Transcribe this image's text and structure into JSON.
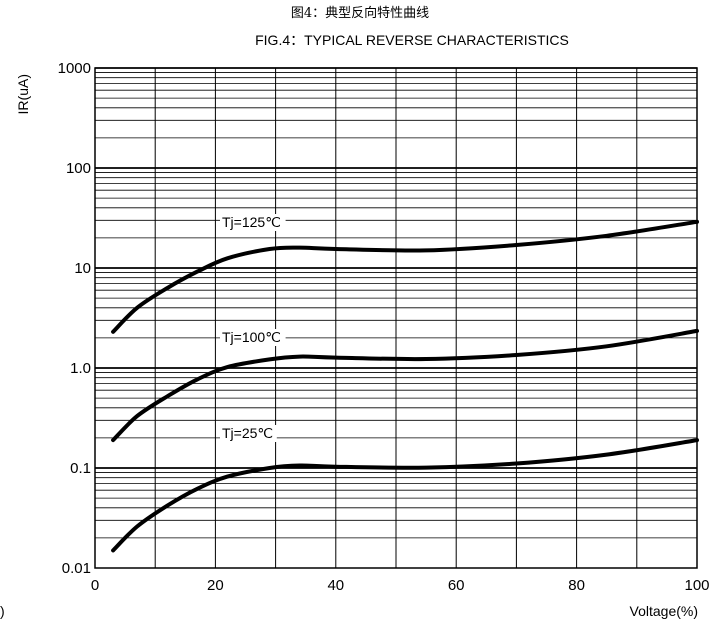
{
  "chart_data": {
    "type": "line",
    "title_cn": "图4：典型反向特性曲线",
    "title": "FIG.4：TYPICAL REVERSE CHARACTERISTICS",
    "xlabel": "Voltage(%)",
    "ylabel": "IR(uA)",
    "x_scale": "linear",
    "y_scale": "log",
    "xlim": [
      0,
      100
    ],
    "ylim": [
      0.01,
      1000
    ],
    "x_ticks": [
      "0",
      "20",
      "40",
      "60",
      "80",
      "100"
    ],
    "y_ticks": [
      "0.01",
      "0.1",
      "1.0",
      "10",
      "100",
      "1000"
    ],
    "grid": true,
    "series": [
      {
        "name": "Tj=125℃",
        "x": [
          3,
          7,
          12,
          17,
          22,
          29,
          34,
          40,
          55,
          70,
          85,
          100
        ],
        "y": [
          2.3,
          4.0,
          6.3,
          9.2,
          12.5,
          15.5,
          16.0,
          15.5,
          15.0,
          17.0,
          21.0,
          29.0
        ]
      },
      {
        "name": "Tj=100℃",
        "x": [
          3,
          7,
          12,
          17,
          22,
          29,
          34,
          40,
          55,
          70,
          85,
          100
        ],
        "y": [
          0.19,
          0.33,
          0.52,
          0.77,
          1.02,
          1.22,
          1.3,
          1.27,
          1.23,
          1.35,
          1.65,
          2.35
        ]
      },
      {
        "name": "Tj=25℃",
        "x": [
          3,
          7,
          12,
          17,
          22,
          29,
          34,
          40,
          55,
          70,
          85,
          100
        ],
        "y": [
          0.015,
          0.026,
          0.042,
          0.062,
          0.082,
          0.1,
          0.106,
          0.103,
          0.101,
          0.111,
          0.136,
          0.19
        ]
      }
    ],
    "annotations": [
      "Tj=125℃",
      "Tj=100℃",
      "Tj=25℃"
    ],
    "footnote": ")"
  }
}
